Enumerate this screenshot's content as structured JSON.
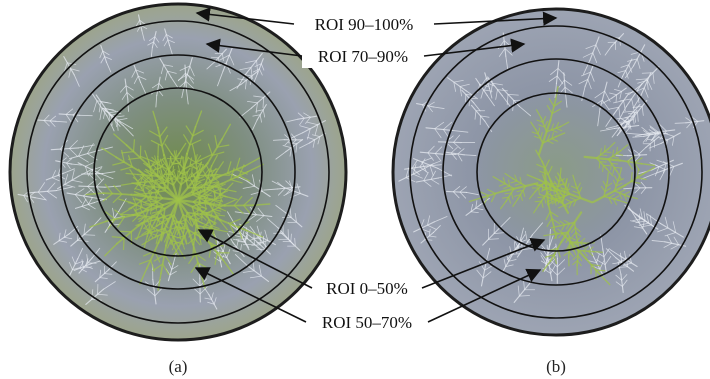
{
  "panels": [
    {
      "id": "a",
      "label": "(a)"
    },
    {
      "id": "b",
      "label": "(b)"
    }
  ],
  "regions": [
    {
      "id": "roi-90-100",
      "label": "ROI 90–100%"
    },
    {
      "id": "roi-70-90",
      "label": "ROI 70–90%"
    },
    {
      "id": "roi-0-50",
      "label": "ROI 0–50%"
    },
    {
      "id": "roi-50-70",
      "label": "ROI 50–70%"
    }
  ],
  "colors": {
    "dish_rim": "#2a2a2a",
    "dish_background": "#8b93a6",
    "crystal_green": "#9fc24a",
    "crystal_white": "#e6eaf0",
    "ring_stroke": "#111111"
  }
}
